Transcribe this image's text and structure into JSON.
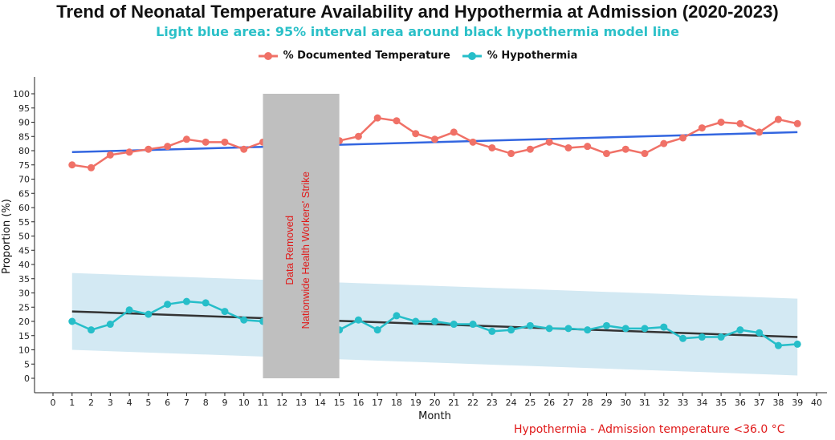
{
  "chart_data": {
    "type": "line",
    "title": "Trend of Neonatal Temperature Availability and Hypothermia at Admission (2020-2023)",
    "subtitle": "Light blue area: 95% interval area around black hypothermia model line",
    "xlabel": "Month",
    "ylabel": "Proportion (%)",
    "xlim": [
      0,
      40
    ],
    "ylim": [
      0,
      100
    ],
    "x_ticks": [
      0,
      1,
      2,
      3,
      4,
      5,
      6,
      7,
      8,
      9,
      10,
      11,
      12,
      13,
      14,
      15,
      16,
      17,
      18,
      19,
      20,
      21,
      22,
      23,
      24,
      25,
      26,
      27,
      28,
      29,
      30,
      31,
      32,
      33,
      34,
      35,
      36,
      37,
      38,
      39,
      40
    ],
    "y_ticks": [
      0,
      5,
      10,
      15,
      20,
      25,
      30,
      35,
      40,
      45,
      50,
      55,
      60,
      65,
      70,
      75,
      80,
      85,
      90,
      95,
      100
    ],
    "legend": [
      {
        "label": "% Documented Temperature",
        "color": "#f07167"
      },
      {
        "label": "% Hypothermia",
        "color": "#26bec9"
      }
    ],
    "series": [
      {
        "name": "% Documented Temperature",
        "color": "#f07167",
        "x": [
          1,
          2,
          3,
          4,
          5,
          6,
          7,
          8,
          9,
          10,
          11,
          15,
          16,
          17,
          18,
          19,
          20,
          21,
          22,
          23,
          24,
          25,
          26,
          27,
          28,
          29,
          30,
          31,
          32,
          33,
          34,
          35,
          36,
          37,
          38,
          39
        ],
        "values": [
          75,
          74,
          78.5,
          79.5,
          80.5,
          81.5,
          84,
          83,
          83,
          80.5,
          83,
          83.5,
          85,
          91.5,
          90.5,
          86,
          84,
          86.5,
          83,
          81,
          79,
          80.5,
          83,
          81,
          81.5,
          79,
          80.5,
          79,
          82.5,
          84.5,
          88,
          90,
          89.5,
          86.5,
          91,
          89.5
        ]
      },
      {
        "name": "% Hypothermia",
        "color": "#26bec9",
        "x": [
          1,
          2,
          3,
          4,
          5,
          6,
          7,
          8,
          9,
          10,
          11,
          15,
          16,
          17,
          18,
          19,
          20,
          21,
          22,
          23,
          24,
          25,
          26,
          27,
          28,
          29,
          30,
          31,
          32,
          33,
          34,
          35,
          36,
          37,
          38,
          39
        ],
        "values": [
          20,
          17,
          19,
          24,
          22.5,
          26,
          27,
          26.5,
          23.5,
          20.5,
          20,
          17,
          20.5,
          17,
          22,
          20,
          20,
          19,
          19,
          16.5,
          17,
          18.5,
          17.5,
          17.5,
          17,
          18.5,
          17.5,
          17.5,
          18,
          14,
          14.5,
          14.5,
          17,
          16,
          11.5,
          12
        ]
      }
    ],
    "trend_lines": [
      {
        "name": "Documented temperature trend",
        "color": "#3366e0",
        "x": [
          1,
          39
        ],
        "values": [
          79.5,
          86.5
        ]
      },
      {
        "name": "Hypothermia model line",
        "color": "#333333",
        "x": [
          1,
          39
        ],
        "values": [
          23.5,
          14.5
        ]
      }
    ],
    "interval_band": {
      "color": "#d3e9f3",
      "x": [
        1,
        39
      ],
      "upper": [
        37,
        28
      ],
      "lower": [
        10,
        1
      ]
    },
    "excluded_region": {
      "x_range": [
        11,
        15
      ],
      "y_range": [
        0,
        100
      ],
      "color": "#bfbfbf",
      "label_lines": [
        "Data Removed",
        "Nationwide Health Workers' Strike"
      ]
    },
    "footnote": "Hypothermia - Admission temperature <36.0 °C"
  }
}
